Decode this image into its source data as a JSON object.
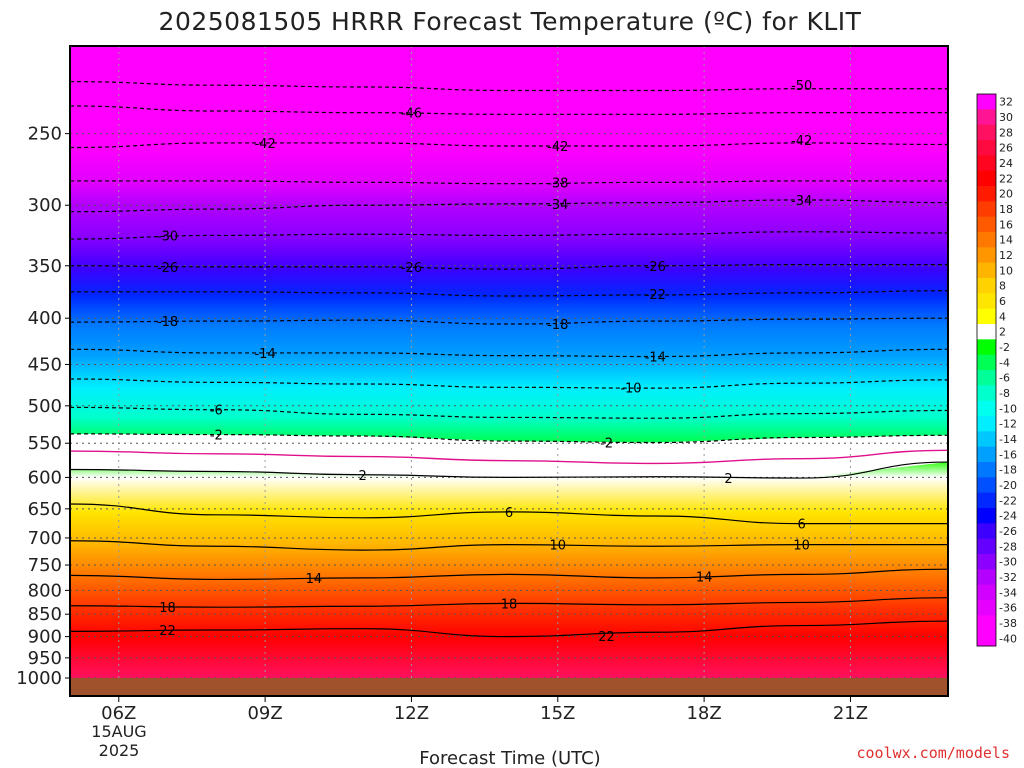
{
  "chart_data": {
    "type": "heatmap",
    "title": "2025081505 HRRR Forecast Temperature (ºC) for KLIT",
    "xlabel": "Forecast Time (UTC)",
    "ylabel": "",
    "x_ticks": [
      "06Z",
      "09Z",
      "12Z",
      "15Z",
      "18Z",
      "21Z"
    ],
    "x_date_line1": "15AUG",
    "x_date_line2": "2025",
    "xlim_hours_utc": [
      5,
      23
    ],
    "y_ticks": [
      250,
      300,
      350,
      400,
      450,
      500,
      550,
      600,
      650,
      700,
      750,
      800,
      850,
      900,
      950,
      1000
    ],
    "ylim_hpa": [
      200,
      1000
    ],
    "y_scale": "log",
    "y_inverted": true,
    "grid": "dotted",
    "colorbar": {
      "levels": [
        32,
        30,
        28,
        26,
        24,
        22,
        20,
        18,
        16,
        14,
        12,
        10,
        8,
        6,
        4,
        2,
        -2,
        -4,
        -6,
        -8,
        -10,
        -12,
        -14,
        -16,
        -18,
        -20,
        -22,
        -24,
        -26,
        -28,
        -30,
        -32,
        -34,
        -36,
        -38,
        -40
      ],
      "colors": [
        "#ff00ff",
        "#ff1493",
        "#ff1060",
        "#ff0a40",
        "#ff0520",
        "#ff0000",
        "#ff1a00",
        "#ff3c00",
        "#ff5a00",
        "#ff7800",
        "#ff9600",
        "#ffb400",
        "#ffd200",
        "#ffe600",
        "#ffff00",
        "#ffffff",
        "#00ff00",
        "#00ff55",
        "#00ff99",
        "#00ffcc",
        "#00ffee",
        "#00eeff",
        "#00c8ff",
        "#00a0ff",
        "#0078ff",
        "#0050ff",
        "#0028ff",
        "#0000ff",
        "#3c00ff",
        "#6400ff",
        "#8c00ff",
        "#b400ff",
        "#d200ff",
        "#e600ff",
        "#ff00ff",
        "#ff00ff"
      ]
    },
    "contours": [
      {
        "label": "-50",
        "hours": [
          5,
          8,
          11,
          14,
          17,
          20,
          23
        ],
        "hpa": [
          219,
          221,
          222,
          224,
          224,
          223,
          223
        ]
      },
      {
        "label": "-46",
        "hours": [
          5,
          8,
          11,
          14,
          17,
          20,
          23
        ],
        "hpa": [
          233,
          236,
          237,
          238,
          238,
          237,
          237
        ]
      },
      {
        "label": "-42",
        "hours": [
          5,
          8,
          11,
          14,
          17,
          20,
          23
        ],
        "hpa": [
          259,
          256,
          256,
          258,
          258,
          256,
          257
        ]
      },
      {
        "label": "-38",
        "hours": [
          5,
          8,
          11,
          14,
          17,
          20,
          23
        ],
        "hpa": [
          282,
          282,
          283,
          284,
          283,
          282,
          282
        ]
      },
      {
        "label": "-34",
        "hours": [
          5,
          8,
          11,
          14,
          17,
          20,
          23
        ],
        "hpa": [
          305,
          303,
          300,
          299,
          298,
          296,
          298
        ]
      },
      {
        "label": "-30",
        "hours": [
          5,
          8,
          11,
          14,
          17,
          20,
          23
        ],
        "hpa": [
          327,
          324,
          323,
          324,
          323,
          321,
          322
        ]
      },
      {
        "label": "-26",
        "hours": [
          5,
          8,
          11,
          14,
          17,
          20,
          23
        ],
        "hpa": [
          350,
          351,
          351,
          353,
          350,
          349,
          349
        ]
      },
      {
        "label": "-22",
        "hours": [
          5,
          8,
          11,
          14,
          17,
          20,
          23
        ],
        "hpa": [
          374,
          374,
          375,
          378,
          377,
          375,
          373
        ]
      },
      {
        "label": "-18",
        "hours": [
          5,
          8,
          11,
          14,
          17,
          20,
          23
        ],
        "hpa": [
          404,
          403,
          402,
          406,
          403,
          401,
          400
        ]
      },
      {
        "label": "-14",
        "hours": [
          5,
          8,
          11,
          14,
          17,
          20,
          23
        ],
        "hpa": [
          433,
          437,
          437,
          440,
          441,
          437,
          433
        ]
      },
      {
        "label": "-10",
        "hours": [
          5,
          8,
          11,
          14,
          17,
          20,
          23
        ],
        "hpa": [
          467,
          471,
          473,
          477,
          478,
          472,
          468
        ]
      },
      {
        "label": "-6",
        "hours": [
          5,
          8,
          11,
          14,
          17,
          20,
          23
        ],
        "hpa": [
          502,
          505,
          511,
          515,
          516,
          510,
          506
        ]
      },
      {
        "label": "-2",
        "hours": [
          5,
          8,
          11,
          14,
          17,
          20,
          23
        ],
        "hpa": [
          537,
          538,
          540,
          547,
          549,
          542,
          539
        ]
      },
      {
        "label": "0",
        "hours": [
          5,
          8,
          11,
          14,
          17,
          20,
          23
        ],
        "hpa": [
          561,
          565,
          569,
          575,
          579,
          572,
          560
        ]
      },
      {
        "label": "2",
        "hours": [
          5,
          8,
          11,
          14,
          17,
          20,
          23
        ],
        "hpa": [
          588,
          591,
          596,
          600,
          599,
          601,
          577
        ]
      },
      {
        "label": "6",
        "hours": [
          5,
          8,
          11,
          14,
          17,
          20,
          23
        ],
        "hpa": [
          642,
          660,
          665,
          655,
          662,
          675,
          675
        ]
      },
      {
        "label": "10",
        "hours": [
          5,
          8,
          11,
          14,
          17,
          20,
          23
        ],
        "hpa": [
          705,
          715,
          722,
          712,
          715,
          712,
          712
        ]
      },
      {
        "label": "14",
        "hours": [
          5,
          8,
          11,
          14,
          17,
          20,
          23
        ],
        "hpa": [
          770,
          778,
          775,
          768,
          775,
          768,
          758
        ]
      },
      {
        "label": "18",
        "hours": [
          5,
          8,
          11,
          14,
          17,
          20,
          23
        ],
        "hpa": [
          832,
          835,
          833,
          827,
          830,
          825,
          815
        ]
      },
      {
        "label": "22",
        "hours": [
          5,
          8,
          11,
          14,
          17,
          20,
          23
        ],
        "hpa": [
          888,
          885,
          882,
          900,
          890,
          875,
          865
        ]
      }
    ],
    "contour_labels": [
      {
        "text": "-50",
        "hour": 20.0,
        "hpa": 221
      },
      {
        "text": "-46",
        "hour": 12.0,
        "hpa": 237
      },
      {
        "text": "-42",
        "hour": 9.0,
        "hpa": 256
      },
      {
        "text": "-42",
        "hour": 15.0,
        "hpa": 258
      },
      {
        "text": "-42",
        "hour": 20.0,
        "hpa": 254
      },
      {
        "text": "-38",
        "hour": 15.0,
        "hpa": 283
      },
      {
        "text": "-34",
        "hour": 15.0,
        "hpa": 299
      },
      {
        "text": "-34",
        "hour": 20.0,
        "hpa": 296
      },
      {
        "text": "-30",
        "hour": 7.0,
        "hpa": 324
      },
      {
        "text": "-26",
        "hour": 7.0,
        "hpa": 351
      },
      {
        "text": "-26",
        "hour": 12.0,
        "hpa": 351
      },
      {
        "text": "-26",
        "hour": 17.0,
        "hpa": 350
      },
      {
        "text": "-22",
        "hour": 17.0,
        "hpa": 376
      },
      {
        "text": "-18",
        "hour": 7.0,
        "hpa": 403
      },
      {
        "text": "-18",
        "hour": 15.0,
        "hpa": 406
      },
      {
        "text": "-14",
        "hour": 9.0,
        "hpa": 437
      },
      {
        "text": "-14",
        "hour": 17.0,
        "hpa": 441
      },
      {
        "text": "-10",
        "hour": 16.5,
        "hpa": 477
      },
      {
        "text": "-6",
        "hour": 8.0,
        "hpa": 505
      },
      {
        "text": "-2",
        "hour": 8.0,
        "hpa": 538
      },
      {
        "text": "-2",
        "hour": 16.0,
        "hpa": 549
      },
      {
        "text": "2",
        "hour": 11.0,
        "hpa": 596
      },
      {
        "text": "2",
        "hour": 18.5,
        "hpa": 601
      },
      {
        "text": "6",
        "hour": 14.0,
        "hpa": 655
      },
      {
        "text": "6",
        "hour": 20.0,
        "hpa": 675
      },
      {
        "text": "10",
        "hour": 15.0,
        "hpa": 712
      },
      {
        "text": "10",
        "hour": 20.0,
        "hpa": 712
      },
      {
        "text": "14",
        "hour": 10.0,
        "hpa": 775
      },
      {
        "text": "14",
        "hour": 18.0,
        "hpa": 772
      },
      {
        "text": "18",
        "hour": 7.0,
        "hpa": 835
      },
      {
        "text": "18",
        "hour": 14.0,
        "hpa": 827
      },
      {
        "text": "22",
        "hour": 7.0,
        "hpa": 885
      },
      {
        "text": "22",
        "hour": 16.0,
        "hpa": 898
      }
    ],
    "credit": "coolwx.com/models"
  }
}
